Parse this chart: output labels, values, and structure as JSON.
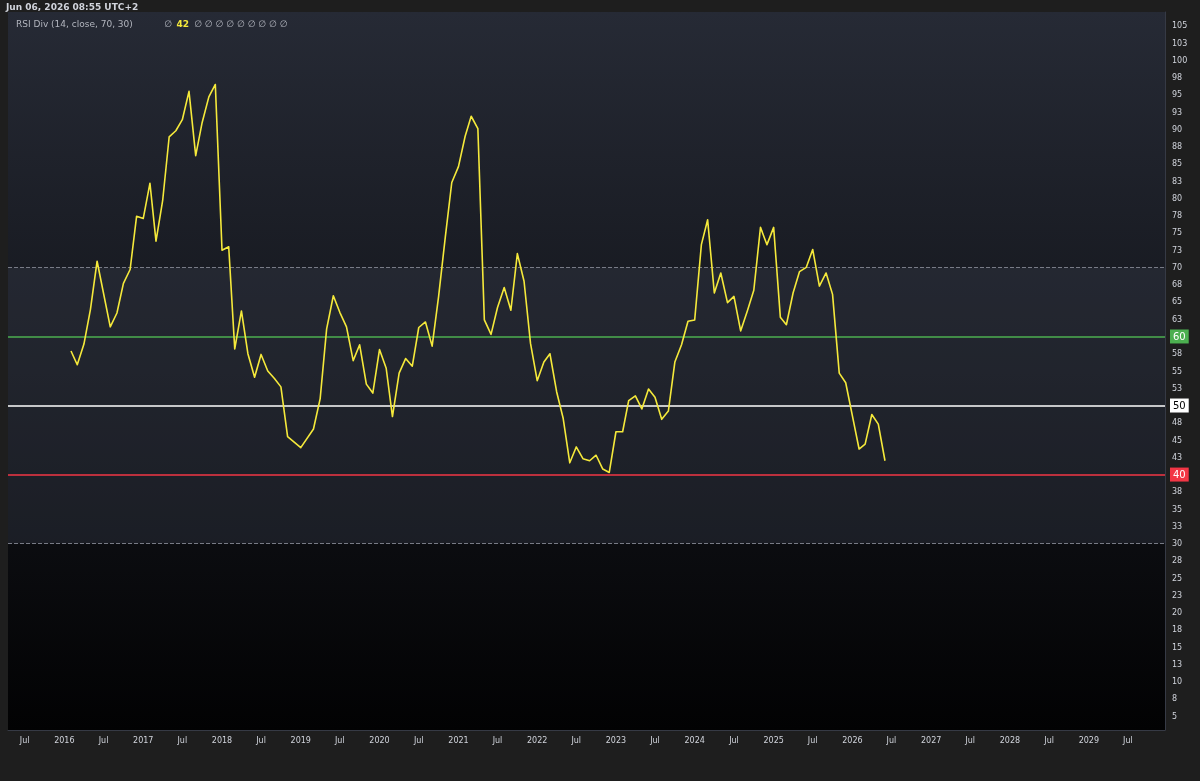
{
  "chart_data": {
    "type": "line",
    "title": "RSI Div (14, close, 70, 30)",
    "annotations": [
      "Jun 06, 2026 08:55 UTC+2",
      "∅",
      "42",
      "∅ ∅ ∅ ∅ ∅ ∅ ∅ ∅ ∅"
    ],
    "x": [
      "2016-02",
      "2016-03",
      "2016-04",
      "2016-05",
      "2016-06",
      "2016-08",
      "2016-09",
      "2016-10",
      "2016-11",
      "2016-12",
      "2017-01",
      "2017-02",
      "2017-03",
      "2017-04",
      "2017-05",
      "2017-06",
      "2017-07",
      "2017-08",
      "2017-09",
      "2017-10",
      "2017-11",
      "2017-12",
      "2018-01",
      "2018-02",
      "2018-03",
      "2018-04",
      "2018-05",
      "2018-06",
      "2018-07",
      "2018-08",
      "2018-09",
      "2018-10",
      "2018-11",
      "2019-01",
      "2019-03",
      "2019-04",
      "2019-05",
      "2019-06",
      "2019-07",
      "2019-08",
      "2019-09",
      "2019-10",
      "2019-11",
      "2019-12",
      "2020-01",
      "2020-02",
      "2020-03",
      "2020-04",
      "2020-05",
      "2020-06",
      "2020-07",
      "2020-08",
      "2020-09",
      "2020-10",
      "2020-11",
      "2020-12",
      "2021-01",
      "2021-02",
      "2021-03",
      "2021-04",
      "2021-05",
      "2021-06",
      "2021-07",
      "2021-08",
      "2021-09",
      "2021-10",
      "2021-11",
      "2021-12",
      "2022-01",
      "2022-02",
      "2022-03",
      "2022-04",
      "2022-05",
      "2022-06",
      "2022-07",
      "2022-08",
      "2022-09",
      "2022-10",
      "2022-11",
      "2022-12",
      "2023-01",
      "2023-02",
      "2023-03",
      "2023-04",
      "2023-05",
      "2023-06",
      "2023-07",
      "2023-08",
      "2023-09",
      "2023-10",
      "2023-11",
      "2023-12",
      "2024-01",
      "2024-02",
      "2024-03",
      "2024-04",
      "2024-05",
      "2024-06",
      "2024-07",
      "2024-08",
      "2024-09",
      "2024-10",
      "2024-11",
      "2024-12",
      "2025-01",
      "2025-02",
      "2025-03",
      "2025-04",
      "2025-05",
      "2025-06",
      "2025-07",
      "2025-08",
      "2025-09",
      "2025-10",
      "2025-11",
      "2025-12",
      "2026-01",
      "2026-02",
      "2026-03",
      "2026-04",
      "2026-05",
      "2026-06"
    ],
    "series": [
      {
        "color": "#f5e93b",
        "values": [
          57.9,
          55.9,
          58.9,
          63.9,
          70.9,
          61.4,
          63.4,
          67.7,
          69.7,
          77.4,
          77.1,
          82.2,
          73.8,
          79.7,
          88.9,
          89.8,
          91.4,
          95.5,
          86.2,
          91.0,
          94.7,
          96.5,
          72.5,
          73.0,
          58.2,
          63.7,
          57.5,
          54.1,
          57.4,
          55.0,
          53.9,
          52.7,
          45.5,
          43.9,
          46.6,
          51.0,
          61.1,
          65.9,
          63.5,
          61.4,
          56.5,
          58.8,
          53.1,
          51.8,
          58.1,
          55.4,
          48.4,
          54.7,
          56.8,
          55.7,
          61.3,
          62.1,
          58.6,
          65.8,
          74.4,
          82.3,
          84.6,
          89.0,
          91.9,
          90.1,
          62.4,
          60.3,
          64.2,
          67.1,
          63.8,
          72.0,
          68.0,
          59.0,
          53.6,
          56.3,
          57.5,
          52.0,
          48.2,
          41.7,
          44.0,
          42.3,
          42.0,
          42.8,
          40.8,
          40.3,
          46.2,
          46.2,
          50.7,
          51.4,
          49.5,
          52.4,
          51.2,
          48.0,
          49.2,
          56.3,
          58.8,
          62.2,
          62.4,
          73.3,
          76.9,
          66.3,
          69.2,
          64.9,
          65.8,
          60.8,
          63.7,
          66.7,
          75.8,
          73.3,
          75.8,
          62.8,
          61.7,
          66.3,
          69.4,
          70.0,
          72.6,
          67.3,
          69.2,
          66.1,
          54.7,
          53.3,
          48.5,
          43.7,
          44.4,
          48.7,
          47.3,
          42
        ]
      }
    ],
    "xlim": [
      "2015-04-15",
      "2029-12-20"
    ],
    "xticks": [
      {
        "value": "2015-07",
        "label": "Jul"
      },
      "2016",
      {
        "value": "2016-07",
        "label": "Jul"
      },
      "2017",
      {
        "value": "2017-07",
        "label": "Jul"
      },
      "2018",
      {
        "value": "2018-07",
        "label": "Jul"
      },
      "2019",
      {
        "value": "2019-07",
        "label": "Jul"
      },
      "2020",
      {
        "value": "2020-07",
        "label": "Jul"
      },
      "2021",
      {
        "value": "2021-07",
        "label": "Jul"
      },
      "2022",
      {
        "value": "2022-07",
        "label": "Jul"
      },
      "2023",
      {
        "value": "2023-07",
        "label": "Jul"
      },
      "2024",
      {
        "value": "2024-07",
        "label": "Jul"
      },
      "2025",
      {
        "value": "2025-07",
        "label": "Jul"
      },
      "2026",
      {
        "value": "2026-07",
        "label": "Jul"
      },
      "2027",
      {
        "value": "2027-07",
        "label": "Jul"
      },
      "2028",
      {
        "value": "2028-07",
        "label": "Jul"
      },
      "2029",
      {
        "value": "2029-07",
        "label": "Jul"
      }
    ],
    "ylim": [
      3,
      107
    ],
    "yticks": [
      5,
      {
        "value": 7.5,
        "label": "8"
      },
      10,
      {
        "value": 12.5,
        "label": "13"
      },
      15,
      {
        "value": 17.5,
        "label": "18"
      },
      20,
      {
        "value": 22.5,
        "label": "23"
      },
      25,
      {
        "value": 27.5,
        "label": "28"
      },
      30,
      {
        "value": 32.5,
        "label": "33"
      },
      35,
      {
        "value": 37.5,
        "label": "38"
      },
      {
        "value": 42.5,
        "label": "43"
      },
      45,
      {
        "value": 47.5,
        "label": "48"
      },
      {
        "value": 52.5,
        "label": "53"
      },
      55,
      {
        "value": 57.5,
        "label": "58"
      },
      {
        "value": 62.5,
        "label": "63"
      },
      65,
      {
        "value": 67.5,
        "label": "68"
      },
      70,
      {
        "value": 72.5,
        "label": "73"
      },
      75,
      {
        "value": 77.5,
        "label": "78"
      },
      80,
      {
        "value": 82.5,
        "label": "83"
      },
      85,
      {
        "value": 87.5,
        "label": "88"
      },
      90,
      {
        "value": 92.5,
        "label": "93"
      },
      95,
      {
        "value": 97.5,
        "label": "98"
      },
      100,
      {
        "value": 102.5,
        "label": "103"
      },
      105
    ],
    "ref_lines": [
      {
        "axis": "y",
        "value": 70,
        "color": "#787b86",
        "line_style": "dashed"
      },
      {
        "axis": "y",
        "value": 30,
        "color": "#787b86",
        "line_style": "dashed"
      },
      {
        "axis": "y",
        "value": 60,
        "label": "60",
        "color": "#4caf50",
        "line_style": "solid"
      },
      {
        "axis": "y",
        "value": 50,
        "label": "50",
        "color": "#ffffff",
        "line_style": "solid"
      },
      {
        "axis": "y",
        "value": 40,
        "label": "40",
        "color": "#f23645",
        "line_style": "solid"
      }
    ],
    "bands": [
      {
        "axis": "y",
        "from": 30,
        "to": 70,
        "color": "#3a3f4d"
      }
    ],
    "grid": false,
    "marker": "none",
    "line_style": "solid"
  }
}
